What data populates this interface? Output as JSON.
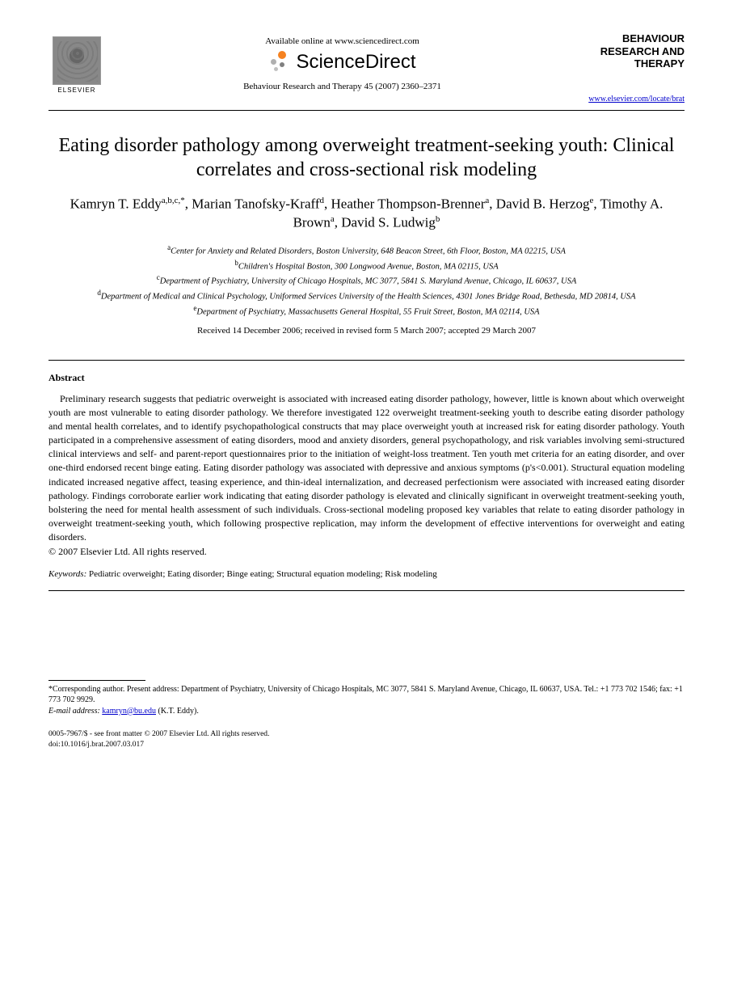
{
  "header": {
    "elsevier": "ELSEVIER",
    "available_online": "Available online at www.sciencedirect.com",
    "sciencedirect": "ScienceDirect",
    "journal_ref": "Behaviour Research and Therapy 45 (2007) 2360–2371",
    "journal_title_l1": "BEHAVIOUR",
    "journal_title_l2": "RESEARCH AND",
    "journal_title_l3": "THERAPY",
    "journal_link": "www.elsevier.com/locate/brat",
    "sd_dot_colors": [
      "#f58220",
      "#b0b0b0",
      "#808080",
      "#c0c0c0"
    ]
  },
  "article": {
    "title": "Eating disorder pathology among overweight treatment-seeking youth: Clinical correlates and cross-sectional risk modeling",
    "authors_html": "Kamryn T. Eddy<sup>a,b,c,*</sup>, Marian Tanofsky-Kraff<sup>d</sup>, Heather Thompson-Brenner<sup>a</sup>, David B. Herzog<sup>e</sup>, Timothy A. Brown<sup>a</sup>, David S. Ludwig<sup>b</sup>",
    "affiliations": [
      "<sup>a</sup>Center for Anxiety and Related Disorders, Boston University, 648 Beacon Street, 6th Floor, Boston, MA 02215, USA",
      "<sup>b</sup>Children's Hospital Boston, 300 Longwood Avenue, Boston, MA 02115, USA",
      "<sup>c</sup>Department of Psychiatry, University of Chicago Hospitals, MC 3077, 5841 S. Maryland Avenue, Chicago, IL 60637, USA",
      "<sup>d</sup>Department of Medical and Clinical Psychology, Uniformed Services University of the Health Sciences, 4301 Jones Bridge Road, Bethesda, MD 20814, USA",
      "<sup>e</sup>Department of Psychiatry, Massachusetts General Hospital, 55 Fruit Street, Boston, MA 02114, USA"
    ],
    "dates": "Received 14 December 2006; received in revised form 5 March 2007; accepted 29 March 2007"
  },
  "abstract": {
    "heading": "Abstract",
    "body": "Preliminary research suggests that pediatric overweight is associated with increased eating disorder pathology, however, little is known about which overweight youth are most vulnerable to eating disorder pathology. We therefore investigated 122 overweight treatment-seeking youth to describe eating disorder pathology and mental health correlates, and to identify psychopathological constructs that may place overweight youth at increased risk for eating disorder pathology. Youth participated in a comprehensive assessment of eating disorders, mood and anxiety disorders, general psychopathology, and risk variables involving semi-structured clinical interviews and self- and parent-report questionnaires prior to the initiation of weight-loss treatment. Ten youth met criteria for an eating disorder, and over one-third endorsed recent binge eating. Eating disorder pathology was associated with depressive and anxious symptoms (p's<0.001). Structural equation modeling indicated increased negative affect, teasing experience, and thin-ideal internalization, and decreased perfectionism were associated with increased eating disorder pathology. Findings corroborate earlier work indicating that eating disorder pathology is elevated and clinically significant in overweight treatment-seeking youth, bolstering the need for mental health assessment of such individuals. Cross-sectional modeling proposed key variables that relate to eating disorder pathology in overweight treatment-seeking youth, which following prospective replication, may inform the development of effective interventions for overweight and eating disorders.",
    "copyright": "© 2007 Elsevier Ltd. All rights reserved."
  },
  "keywords": {
    "label": "Keywords:",
    "text": " Pediatric overweight; Eating disorder; Binge eating; Structural equation modeling; Risk modeling"
  },
  "footnotes": {
    "corresponding": "*Corresponding author. Present address: Department of Psychiatry, University of Chicago Hospitals, MC 3077, 5841 S. Maryland Avenue, Chicago, IL 60637, USA. Tel.: +1 773 702 1546; fax: +1 773 702 9929.",
    "email_label": "E-mail address:",
    "email": "kamryn@bu.edu",
    "email_author": " (K.T. Eddy)."
  },
  "footer": {
    "issn": "0005-7967/$ - see front matter © 2007 Elsevier Ltd. All rights reserved.",
    "doi": "doi:10.1016/j.brat.2007.03.017"
  },
  "colors": {
    "text": "#000000",
    "link": "#0000cc",
    "background": "#ffffff"
  }
}
